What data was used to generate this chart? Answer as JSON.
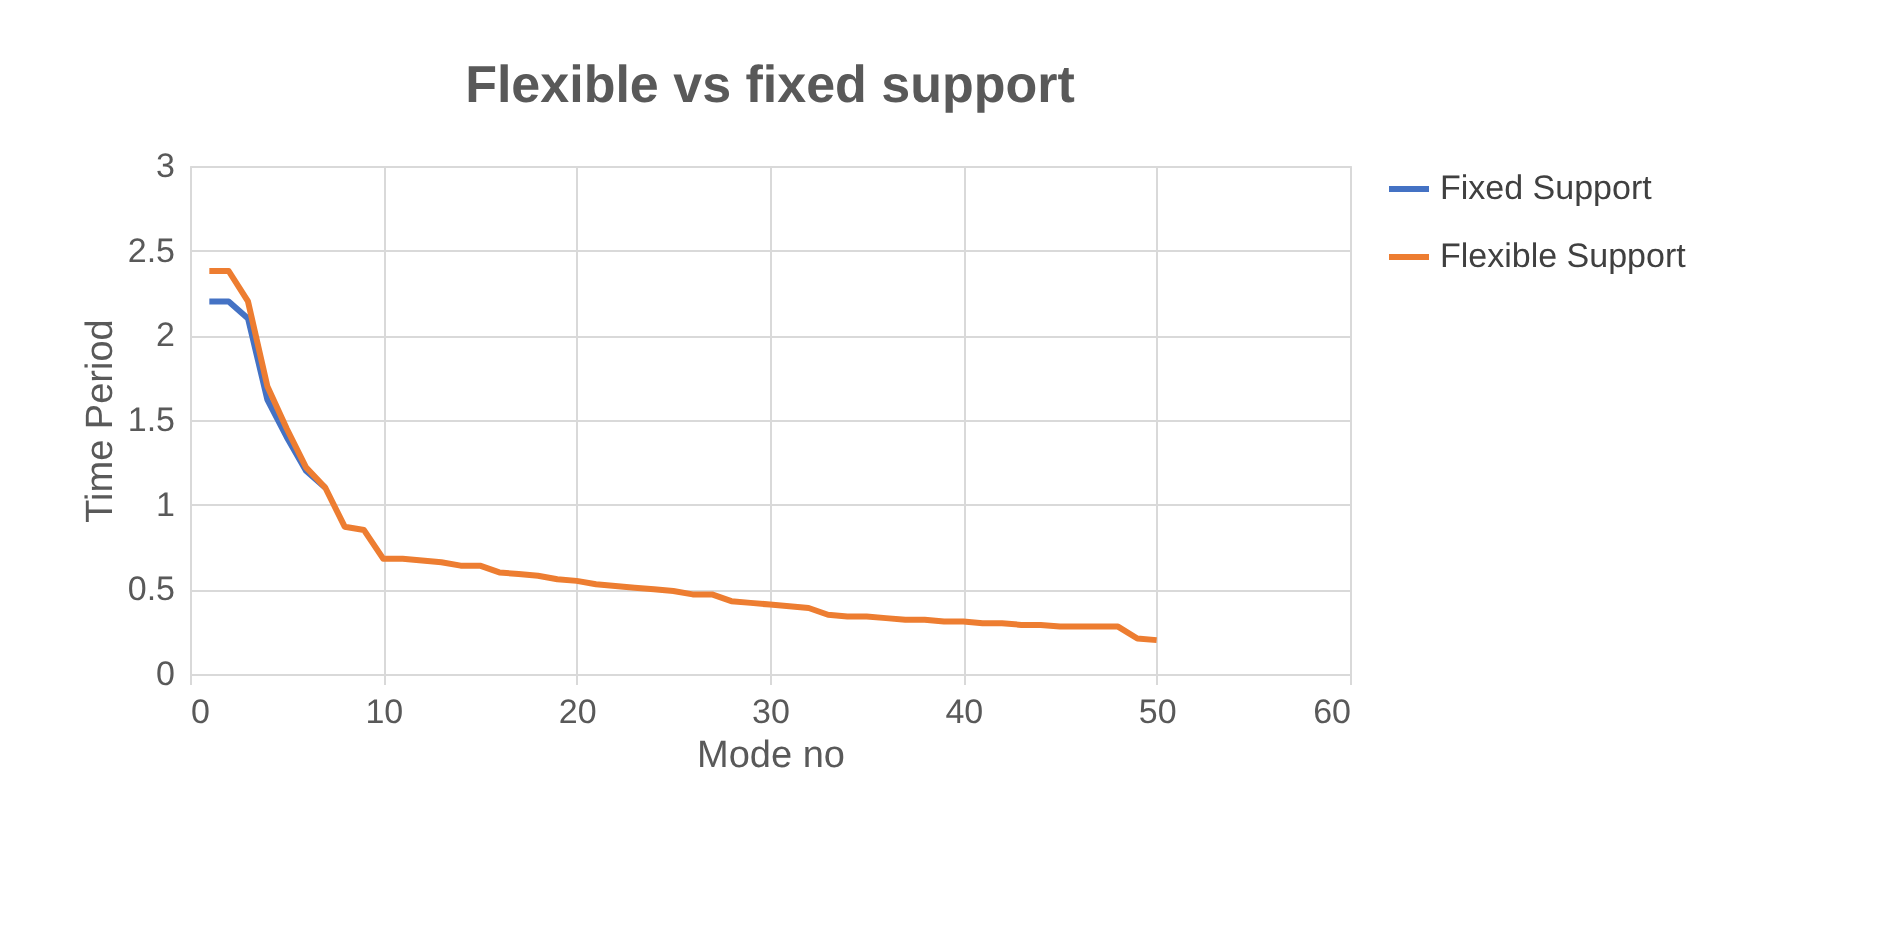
{
  "chart_data": {
    "type": "line",
    "title": "Flexible vs fixed support",
    "xlabel": "Mode no",
    "ylabel": "Time  Period",
    "x": [
      1,
      2,
      3,
      4,
      5,
      6,
      7,
      8,
      9,
      10,
      11,
      12,
      13,
      14,
      15,
      16,
      17,
      18,
      19,
      20,
      21,
      22,
      23,
      24,
      25,
      26,
      27,
      28,
      29,
      30,
      31,
      32,
      33,
      34,
      35,
      36,
      37,
      38,
      39,
      40,
      41,
      42,
      43,
      44,
      45,
      46,
      47,
      48,
      49,
      50
    ],
    "series": [
      {
        "name": "Fixed Support",
        "color": "#4472c4",
        "values": [
          2.2,
          2.2,
          2.1,
          1.62,
          1.4,
          1.2,
          1.1,
          null,
          null,
          null,
          null,
          null,
          null,
          null,
          null,
          null,
          null,
          null,
          null,
          null,
          null,
          null,
          null,
          null,
          null,
          null,
          null,
          null,
          null,
          null,
          null,
          null,
          null,
          null,
          null,
          null,
          null,
          null,
          null,
          null,
          null,
          null,
          null,
          null,
          null,
          null,
          null,
          null,
          null,
          null
        ]
      },
      {
        "name": "Flexible Support",
        "color": "#ed7d31",
        "values": [
          2.38,
          2.38,
          2.2,
          1.7,
          1.45,
          1.22,
          1.1,
          0.87,
          0.85,
          0.68,
          0.68,
          0.67,
          0.66,
          0.64,
          0.64,
          0.6,
          0.59,
          0.58,
          0.56,
          0.55,
          0.53,
          0.52,
          0.51,
          0.5,
          0.49,
          0.47,
          0.47,
          0.43,
          0.42,
          0.41,
          0.4,
          0.39,
          0.35,
          0.34,
          0.34,
          0.33,
          0.32,
          0.32,
          0.31,
          0.31,
          0.3,
          0.3,
          0.29,
          0.29,
          0.28,
          0.28,
          0.28,
          0.28,
          0.21,
          0.2
        ]
      }
    ],
    "xlim": [
      0,
      60
    ],
    "xticks": [
      0,
      10,
      20,
      30,
      40,
      50,
      60
    ],
    "ylim": [
      0,
      3
    ],
    "yticks": [
      0,
      0.5,
      1,
      1.5,
      2,
      2.5,
      3
    ],
    "grid": true,
    "legend": "right",
    "marker": "none",
    "line_style": "solid"
  }
}
